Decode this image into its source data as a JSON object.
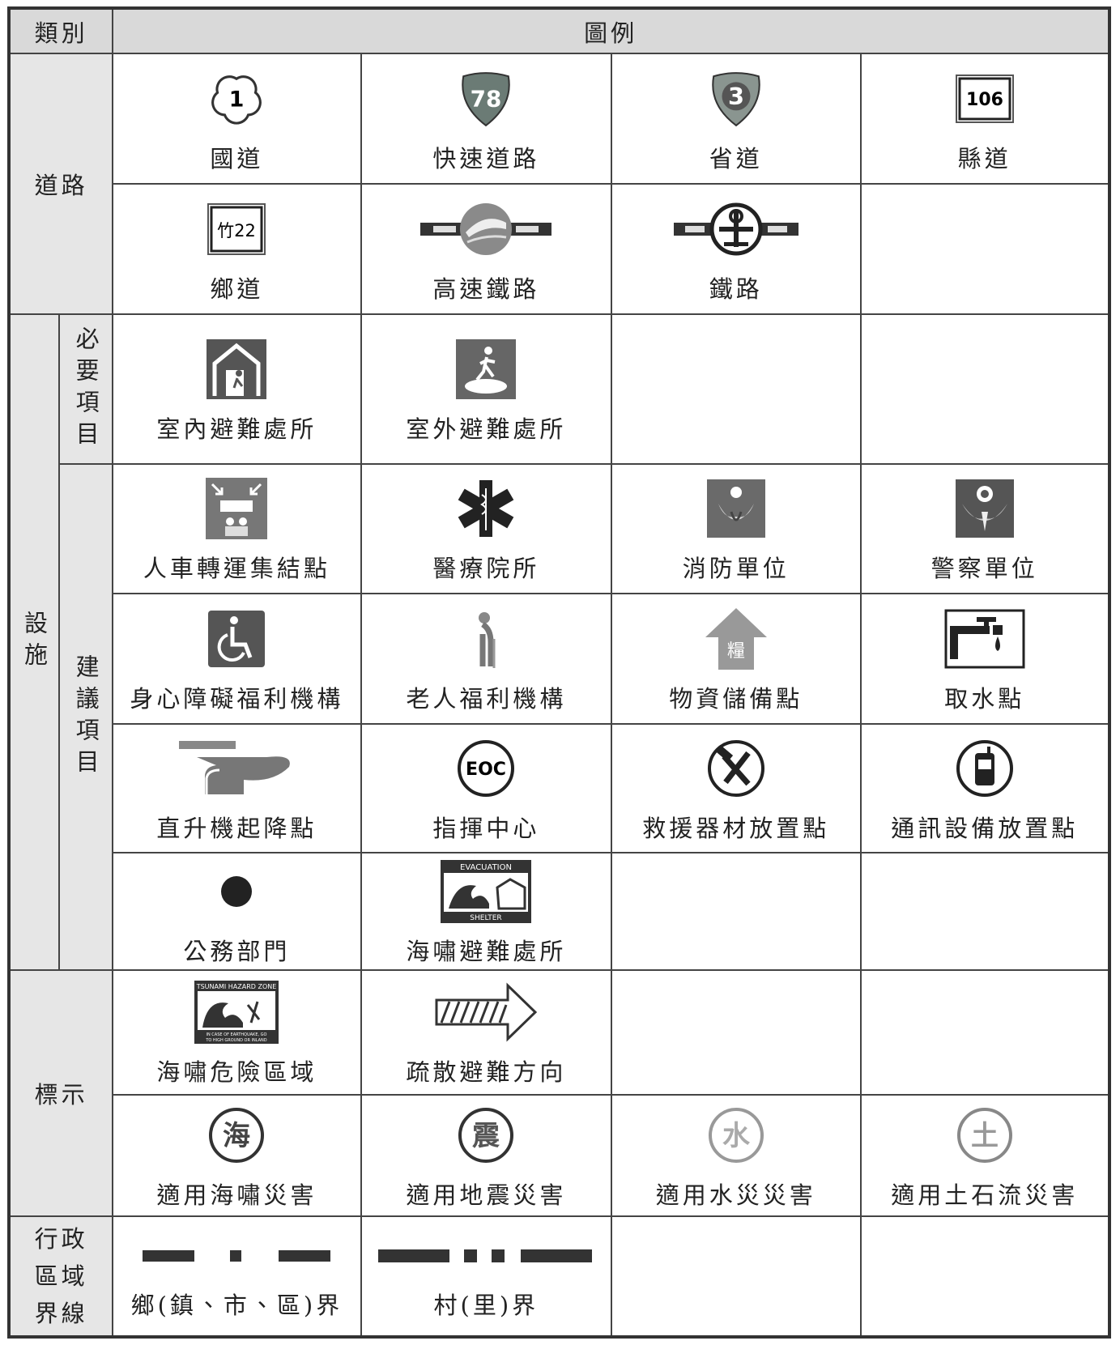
{
  "header": {
    "category": "類別",
    "legend": "圖例"
  },
  "roads": {
    "category": "道路",
    "items": [
      {
        "label": "國道",
        "icon_text": "1"
      },
      {
        "label": "快速道路",
        "icon_text": "78"
      },
      {
        "label": "省道",
        "icon_text": "3"
      },
      {
        "label": "縣道",
        "icon_text": "106"
      },
      {
        "label": "鄉道",
        "icon_text": "竹22"
      },
      {
        "label": "高速鐵路"
      },
      {
        "label": "鐵路"
      }
    ]
  },
  "facilities": {
    "category": "設施",
    "required": {
      "name": "必要項目",
      "items": [
        {
          "label": "室內避難處所"
        },
        {
          "label": "室外避難處所"
        }
      ]
    },
    "suggested": {
      "name": "建議項目",
      "items": [
        {
          "label": "人車轉運集結點"
        },
        {
          "label": "醫療院所"
        },
        {
          "label": "消防單位"
        },
        {
          "label": "警察單位"
        },
        {
          "label": "身心障礙福利機構"
        },
        {
          "label": "老人福利機構"
        },
        {
          "label": "物資儲備點",
          "icon_text": "糧"
        },
        {
          "label": "取水點"
        },
        {
          "label": "直升機起降點"
        },
        {
          "label": "指揮中心",
          "icon_text": "EOC"
        },
        {
          "label": "救援器材放置點"
        },
        {
          "label": "通訊設備放置點"
        },
        {
          "label": "公務部門"
        },
        {
          "label": "海嘯避難處所",
          "icon_text": [
            "EVACUATION",
            "SHELTER"
          ]
        }
      ]
    }
  },
  "signs": {
    "category": "標示",
    "items": [
      {
        "label": "海嘯危險區域",
        "icon_text": [
          "TSUNAMI HAZARD ZONE",
          "IN CASE OF EARTHQUAKE, GO",
          "TO HIGH GROUND OR INLAND"
        ]
      },
      {
        "label": "疏散避難方向"
      },
      {
        "label": "適用海嘯災害",
        "icon_text": "海"
      },
      {
        "label": "適用地震災害",
        "icon_text": "震"
      },
      {
        "label": "適用水災災害",
        "icon_text": "水"
      },
      {
        "label": "適用土石流災害",
        "icon_text": "土"
      }
    ]
  },
  "boundaries": {
    "category": "行政區域界線",
    "items": [
      {
        "label": "鄉(鎮、市、區)界"
      },
      {
        "label": "村(里)界"
      }
    ]
  }
}
